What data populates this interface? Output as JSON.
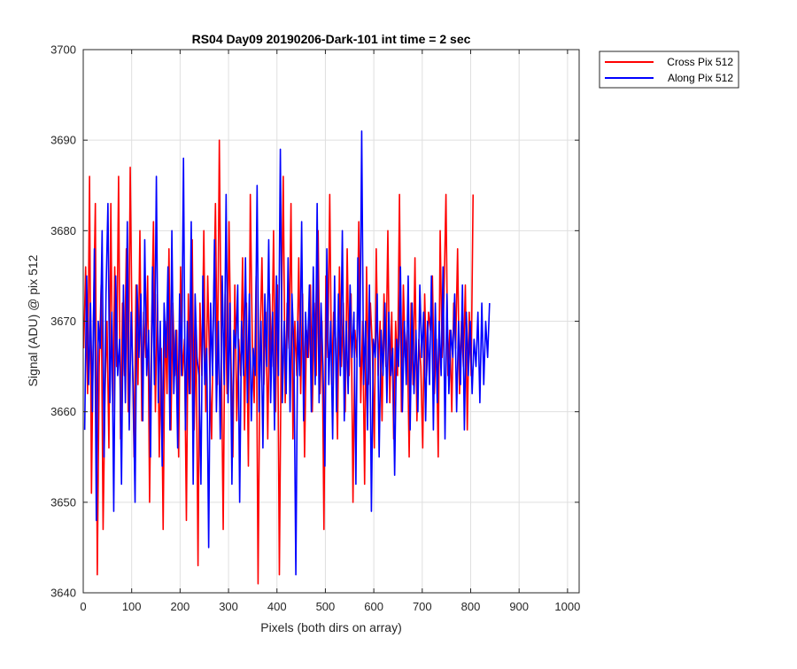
{
  "chart_data": {
    "type": "line",
    "title": "RS04 Day09 20190206-Dark-101 int time = 2 sec",
    "xlabel": "Pixels (both dirs on array)",
    "ylabel": "Signal (ADU) @ pix 512",
    "xlim": [
      0,
      1024
    ],
    "ylim": [
      3640,
      3700
    ],
    "xticks": [
      0,
      100,
      200,
      300,
      400,
      500,
      600,
      700,
      800,
      900,
      1000
    ],
    "yticks": [
      3640,
      3650,
      3660,
      3670,
      3680,
      3690,
      3700
    ],
    "grid": true,
    "legend_position": "outside-top-right",
    "series": [
      {
        "name": "Cross Pix 512",
        "color": "#ff0000",
        "x_start": 1,
        "x_step": 4,
        "values": [
          3667,
          3676,
          3662,
          3686,
          3651,
          3670,
          3683,
          3642,
          3665,
          3674,
          3647,
          3662,
          3670,
          3656,
          3683,
          3660,
          3676,
          3665,
          3686,
          3657,
          3672,
          3664,
          3678,
          3660,
          3687,
          3668,
          3655,
          3674,
          3663,
          3680,
          3659,
          3671,
          3666,
          3675,
          3650,
          3669,
          3681,
          3660,
          3673,
          3655,
          3667,
          3647,
          3670,
          3662,
          3678,
          3658,
          3672,
          3664,
          3669,
          3655,
          3676,
          3664,
          3668,
          3648,
          3673,
          3662,
          3679,
          3658,
          3669,
          3643,
          3672,
          3664,
          3680,
          3660,
          3675,
          3665,
          3657,
          3671,
          3683,
          3663,
          3690,
          3667,
          3647,
          3673,
          3662,
          3681,
          3666,
          3655,
          3674,
          3659,
          3668,
          3664,
          3677,
          3658,
          3672,
          3654,
          3684,
          3668,
          3661,
          3675,
          3641,
          3667,
          3677,
          3663,
          3671,
          3657,
          3673,
          3665,
          3680,
          3660,
          3674,
          3642,
          3669,
          3686,
          3661,
          3672,
          3667,
          3683,
          3657,
          3670,
          3664,
          3677,
          3662,
          3673,
          3655,
          3669,
          3666,
          3674,
          3660,
          3672,
          3664,
          3680,
          3662,
          3670,
          3647,
          3675,
          3666,
          3684,
          3663,
          3671,
          3668,
          3657,
          3676,
          3665,
          3672,
          3660,
          3678,
          3664,
          3673,
          3650,
          3669,
          3666,
          3681,
          3661,
          3670,
          3652,
          3676,
          3663,
          3672,
          3667,
          3656,
          3678,
          3664,
          3670,
          3659,
          3673,
          3665,
          3680,
          3661,
          3671,
          3657,
          3670,
          3664,
          3684,
          3660,
          3674,
          3666,
          3669,
          3655,
          3672,
          3663,
          3677,
          3659,
          3668,
          3665,
          3656,
          3673,
          3664,
          3671,
          3669,
          3675,
          3662,
          3668,
          3655,
          3680,
          3666,
          3673,
          3684,
          3664,
          3669,
          3660,
          3672,
          3667,
          3678,
          3662,
          3670,
          3665,
          3674,
          3658,
          3671,
          3664,
          3684
        ]
      },
      {
        "name": "Along Pix 512",
        "color": "#0000ff",
        "x_start": 3,
        "x_step": 4,
        "values": [
          3658,
          3675,
          3663,
          3672,
          3660,
          3678,
          3648,
          3670,
          3667,
          3680,
          3655,
          3673,
          3683,
          3661,
          3671,
          3649,
          3675,
          3664,
          3668,
          3652,
          3674,
          3661,
          3681,
          3658,
          3671,
          3663,
          3650,
          3674,
          3666,
          3673,
          3659,
          3679,
          3664,
          3669,
          3655,
          3676,
          3663,
          3686,
          3661,
          3670,
          3654,
          3672,
          3666,
          3676,
          3658,
          3680,
          3662,
          3669,
          3656,
          3673,
          3664,
          3688,
          3658,
          3670,
          3662,
          3681,
          3652,
          3673,
          3666,
          3664,
          3652,
          3675,
          3663,
          3667,
          3645,
          3672,
          3664,
          3679,
          3660,
          3670,
          3657,
          3675,
          3663,
          3684,
          3661,
          3672,
          3652,
          3669,
          3667,
          3674,
          3650,
          3670,
          3664,
          3677,
          3661,
          3673,
          3659,
          3667,
          3664,
          3685,
          3660,
          3670,
          3656,
          3673,
          3665,
          3679,
          3661,
          3671,
          3658,
          3675,
          3664,
          3689,
          3661,
          3670,
          3662,
          3677,
          3660,
          3673,
          3667,
          3642,
          3670,
          3664,
          3681,
          3659,
          3671,
          3666,
          3674,
          3660,
          3676,
          3663,
          3683,
          3661,
          3672,
          3665,
          3654,
          3678,
          3663,
          3670,
          3657,
          3675,
          3660,
          3673,
          3664,
          3680,
          3659,
          3670,
          3662,
          3674,
          3666,
          3671,
          3652,
          3677,
          3665,
          3691,
          3663,
          3670,
          3658,
          3674,
          3649,
          3668,
          3666,
          3673,
          3655,
          3669,
          3664,
          3672,
          3661,
          3671,
          3664,
          3667,
          3653,
          3668,
          3665,
          3676,
          3660,
          3670,
          3663,
          3675,
          3658,
          3672,
          3662,
          3669,
          3660,
          3674,
          3666,
          3671,
          3659,
          3670,
          3663,
          3675,
          3658,
          3672,
          3661,
          3670,
          3664,
          3676,
          3657,
          3673,
          3662,
          3669,
          3666,
          3673,
          3660,
          3670,
          3663,
          3674,
          3658,
          3671,
          3664,
          3670,
          3662,
          3668,
          3665,
          3671,
          3661,
          3672,
          3663,
          3670,
          3666,
          3672
        ]
      }
    ]
  }
}
